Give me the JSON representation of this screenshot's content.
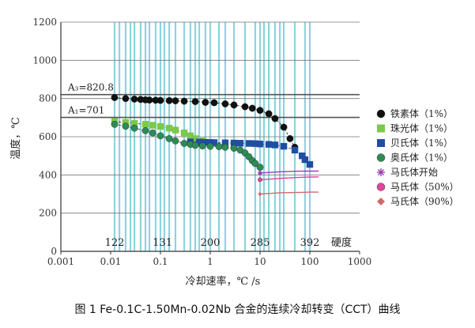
{
  "caption": "图 1  Fe-0.1C-1.50Mn-0.02Nb 合金的连续冷却转变（CCT）曲线",
  "chart_data": {
    "type": "scatter",
    "xlabel": "冷却速率，℃ /s",
    "ylabel": "温度，℃",
    "x_scale": "log",
    "xlim": [
      0.001,
      1000
    ],
    "ylim": [
      0,
      1200
    ],
    "x_ticks": [
      0.001,
      0.01,
      0.1,
      1,
      10,
      100,
      1000
    ],
    "x_tick_labels": [
      "0.001",
      "0.01",
      "0.1",
      "1",
      "10",
      "100",
      "1000"
    ],
    "y_ticks": [
      0,
      200,
      400,
      600,
      800,
      1000,
      1200
    ],
    "y_tick_labels": [
      "0",
      "200",
      "400",
      "600",
      "800",
      "1000",
      "1200"
    ],
    "grid_y": true,
    "grid_x_color": "#8fd3df",
    "reference_lines": [
      {
        "label": "A₃=820.8",
        "y": 820.8
      },
      {
        "label": "A₁=701",
        "y": 701
      }
    ],
    "hardness_title": "硬度",
    "hardness": [
      {
        "x": 0.012,
        "label": "122"
      },
      {
        "x": 0.11,
        "label": "131"
      },
      {
        "x": 1.0,
        "label": "200"
      },
      {
        "x": 10,
        "label": "285"
      },
      {
        "x": 100,
        "label": "392"
      }
    ],
    "cooling_lines_x": [
      0.012,
      0.015,
      0.02,
      0.025,
      0.03,
      0.04,
      0.05,
      0.06,
      0.08,
      0.1,
      0.12,
      0.15,
      0.2,
      0.3,
      0.4,
      0.5,
      0.6,
      0.8,
      1.0,
      1.5,
      2,
      3,
      5,
      8,
      10,
      12,
      15,
      20,
      25,
      30,
      50,
      80,
      100
    ],
    "legend_position": "right",
    "series": [
      {
        "name": "铁素体（1%）",
        "marker": "circle",
        "color": "#111111",
        "x": [
          0.012,
          0.02,
          0.03,
          0.04,
          0.05,
          0.06,
          0.08,
          0.1,
          0.15,
          0.2,
          0.3,
          0.5,
          0.8,
          1.2,
          2,
          3,
          5,
          7,
          10,
          15,
          20,
          30,
          40,
          50
        ],
        "y": [
          805,
          800,
          797,
          795,
          793,
          792,
          791,
          790,
          789,
          788,
          786,
          784,
          780,
          778,
          772,
          766,
          757,
          749,
          738,
          720,
          695,
          650,
          590,
          545
        ]
      },
      {
        "name": "珠光体（1%）",
        "marker": "square",
        "color": "#7cc84a",
        "x": [
          0.012,
          0.02,
          0.03,
          0.05,
          0.07,
          0.1,
          0.15,
          0.2,
          0.3,
          0.4,
          0.5,
          0.7
        ],
        "y": [
          680,
          675,
          670,
          665,
          660,
          654,
          645,
          635,
          620,
          605,
          590,
          578
        ]
      },
      {
        "name": "贝氏体（1%）",
        "marker": "square",
        "color": "#1f4ea3",
        "x": [
          0.4,
          0.6,
          0.8,
          1.0,
          1.2,
          2,
          3,
          4,
          6,
          8,
          10,
          15,
          20,
          30,
          50,
          70,
          80,
          100
        ],
        "y": [
          573,
          572,
          571,
          570,
          569,
          568,
          567,
          566,
          565,
          564,
          562,
          560,
          557,
          550,
          530,
          500,
          480,
          455
        ]
      },
      {
        "name": "奥氏体（1%）",
        "marker": "circle",
        "color": "#2e8b57",
        "x": [
          0.012,
          0.02,
          0.03,
          0.05,
          0.07,
          0.1,
          0.15,
          0.2,
          0.3,
          0.4,
          0.5,
          0.7,
          1.0,
          1.5,
          2,
          3,
          4,
          5,
          6,
          7,
          8,
          10
        ],
        "y": [
          665,
          655,
          645,
          632,
          620,
          605,
          590,
          578,
          565,
          560,
          555,
          552,
          550,
          548,
          545,
          540,
          530,
          515,
          495,
          475,
          460,
          440
        ]
      }
    ],
    "martensite_lines": [
      {
        "name": "马氏体开始",
        "marker": "asterisk",
        "color": "#9b3db8",
        "x": [
          10,
          15,
          20,
          30,
          50,
          80,
          100,
          150
        ],
        "y": [
          410,
          413,
          415,
          417,
          419,
          420,
          420,
          420
        ]
      },
      {
        "name": "马氏体（50%）",
        "marker": "circle",
        "color": "#e0459a",
        "x": [
          10,
          15,
          20,
          30,
          50,
          80,
          100,
          150
        ],
        "y": [
          375,
          378,
          380,
          383,
          386,
          388,
          389,
          390
        ]
      },
      {
        "name": "马氏体（90%）",
        "marker": "diamond",
        "color": "#d06a6a",
        "x": [
          10,
          15,
          20,
          30,
          50,
          80,
          100,
          150
        ],
        "y": [
          300,
          303,
          305,
          307,
          308,
          309,
          310,
          310
        ]
      }
    ]
  }
}
